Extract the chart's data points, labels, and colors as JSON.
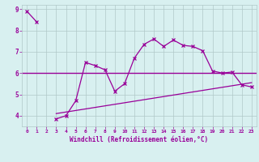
{
  "x_data": [
    0,
    1,
    2,
    3,
    4,
    5,
    6,
    7,
    8,
    9,
    10,
    11,
    12,
    13,
    14,
    15,
    16,
    17,
    18,
    19,
    20,
    21,
    22,
    23
  ],
  "y_main": [
    8.9,
    8.4,
    null,
    3.85,
    4.0,
    4.7,
    6.5,
    6.35,
    6.15,
    5.15,
    5.5,
    6.7,
    7.35,
    7.6,
    7.25,
    7.55,
    7.3,
    7.25,
    7.05,
    6.1,
    6.0,
    6.05,
    5.45,
    5.35
  ],
  "y_linear_start": 4.1,
  "y_linear_end": 5.55,
  "hline_y": 6.0,
  "xlim": [
    -0.5,
    23.5
  ],
  "ylim": [
    3.5,
    9.2
  ],
  "yticks": [
    4,
    5,
    6,
    7,
    8,
    9
  ],
  "xticks": [
    0,
    1,
    2,
    3,
    4,
    5,
    6,
    7,
    8,
    9,
    10,
    11,
    12,
    13,
    14,
    15,
    16,
    17,
    18,
    19,
    20,
    21,
    22,
    23
  ],
  "line_color": "#990099",
  "bg_color": "#d8f0f0",
  "grid_color": "#b0c8c8",
  "xlabel": "Windchill (Refroidissement éolien,°C)",
  "marker": "x"
}
